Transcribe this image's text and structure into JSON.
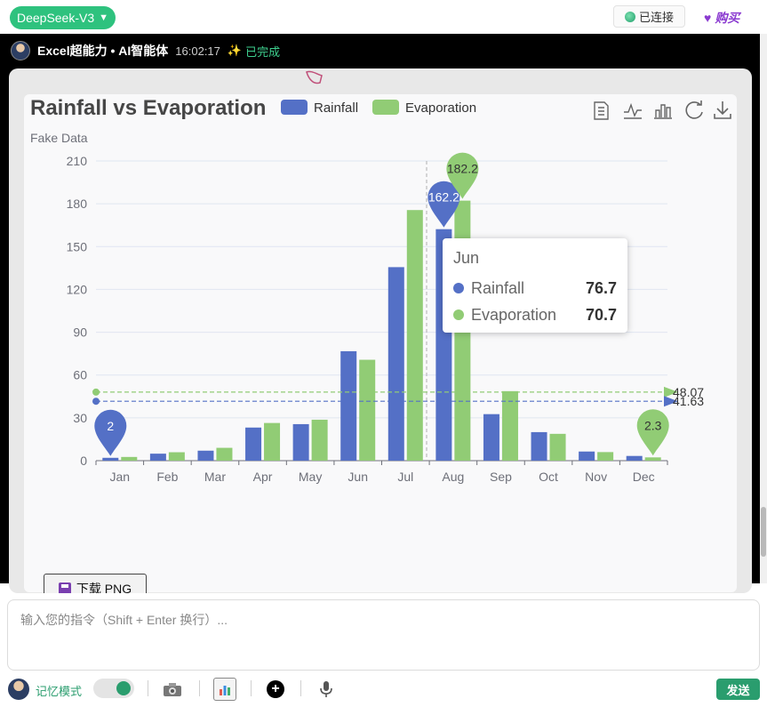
{
  "topbar": {
    "model_label": "DeepSeek-V3",
    "model_caret": "▼",
    "status_label": "已连接",
    "buy_label": "购买",
    "buy_icon": "♥"
  },
  "message": {
    "sender": "Excel超能力 • AI智能体",
    "time": "16:02:17",
    "status": "已完成",
    "status_icon": "✨"
  },
  "chart_data": {
    "type": "bar",
    "title": "Rainfall vs Evaporation",
    "subtitle": "Fake Data",
    "categories": [
      "Jan",
      "Feb",
      "Mar",
      "Apr",
      "May",
      "Jun",
      "Jul",
      "Aug",
      "Sep",
      "Oct",
      "Nov",
      "Dec"
    ],
    "series": [
      {
        "name": "Rainfall",
        "color": "#5470c6",
        "values": [
          2.0,
          4.9,
          7.0,
          23.2,
          25.6,
          76.7,
          135.6,
          162.2,
          32.6,
          20.0,
          6.4,
          3.3
        ]
      },
      {
        "name": "Evaporation",
        "color": "#91cc75",
        "values": [
          2.6,
          5.9,
          9.0,
          26.4,
          28.7,
          70.7,
          175.6,
          182.2,
          48.7,
          18.8,
          6.0,
          2.3
        ]
      }
    ],
    "ylim": [
      0,
      210
    ],
    "yticks": [
      0,
      30,
      60,
      90,
      120,
      150,
      180,
      210
    ],
    "mark_points": [
      {
        "series": "Rainfall",
        "category": "Jan",
        "label": "2"
      },
      {
        "series": "Rainfall",
        "category": "Aug",
        "label": "162.2"
      },
      {
        "series": "Evaporation",
        "category": "Aug",
        "label": "182.2"
      },
      {
        "series": "Evaporation",
        "category": "Dec",
        "label": "2.3"
      }
    ],
    "mark_lines": [
      {
        "series": "Evaporation",
        "value": 48.07,
        "label": "48.07"
      },
      {
        "series": "Rainfall",
        "value": 41.63,
        "label": "41.63"
      }
    ],
    "legend_position": "top",
    "grid": true
  },
  "tooltip": {
    "title": "Jun",
    "rows": [
      {
        "name": "Rainfall",
        "value": "76.7",
        "color": "#5470c6"
      },
      {
        "name": "Evaporation",
        "value": "70.7",
        "color": "#91cc75"
      }
    ]
  },
  "download_button": "下载 PNG",
  "input": {
    "placeholder": "输入您的指令（Shift + Enter 换行）..."
  },
  "bottom": {
    "memory_label": "记忆模式",
    "send_label": "发送"
  }
}
